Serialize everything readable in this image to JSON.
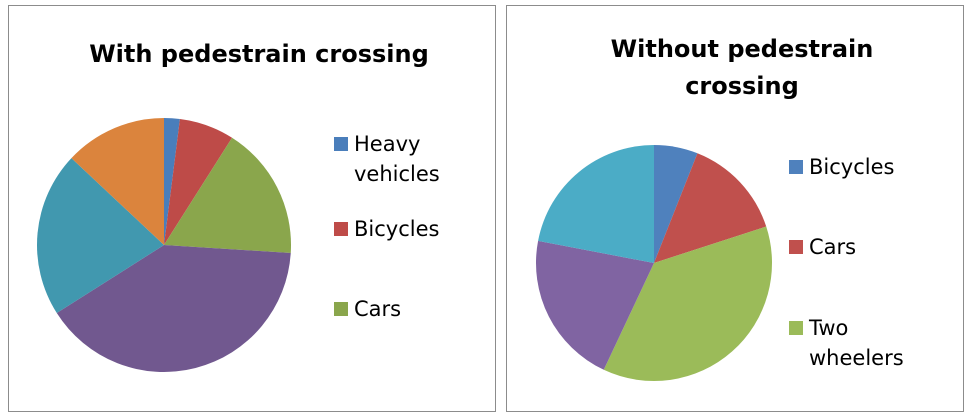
{
  "chart_data": [
    {
      "type": "pie",
      "title": "With pedestrain crossing",
      "categories": [
        "Heavy vehicles",
        "Bicycles",
        "Cars",
        null,
        null,
        null
      ],
      "values": [
        2,
        7,
        17,
        40,
        21,
        13
      ],
      "colors": [
        "#4a7ebb",
        "#be4b48",
        "#8aa64c",
        "#71588f",
        "#4198af",
        "#db843d"
      ]
    },
    {
      "type": "pie",
      "title": "Without pedestrain crossing",
      "categories": [
        "Bicycles",
        "Cars",
        "Two wheelers",
        null,
        null
      ],
      "values": [
        6,
        14,
        37,
        21,
        22
      ],
      "colors": [
        "#4f81bd",
        "#c0504d",
        "#9bbb59",
        "#8064a2",
        "#4bacc6"
      ]
    }
  ]
}
